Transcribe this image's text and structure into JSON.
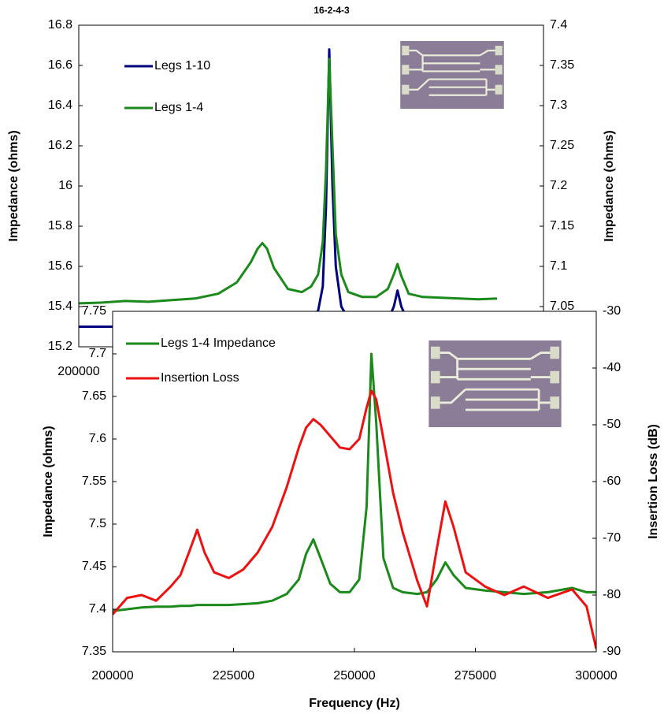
{
  "chart_data": [
    {
      "type": "line",
      "title": "16-2-4-3",
      "ylabel": "Impedance (ohms)",
      "y2label": "Impedance (ohms)",
      "x": [
        200000,
        205000,
        210000,
        215000,
        220000,
        225000,
        230000,
        234000,
        237000,
        238500,
        239500,
        240500,
        242000,
        245000,
        248000,
        250000,
        251500,
        252500,
        253200,
        253900,
        254600,
        255300,
        256500,
        258000,
        261000,
        264000,
        266500,
        267800,
        268600,
        269400,
        271000,
        274000,
        278000,
        282000,
        286000,
        290000
      ],
      "series": [
        {
          "name": "Legs 1-10",
          "color": "#000080",
          "values": [
            15.3,
            15.3,
            15.3,
            15.3,
            15.3,
            15.3,
            15.3,
            15.3,
            15.3,
            15.3,
            15.3,
            15.3,
            15.3,
            15.31,
            15.32,
            15.34,
            15.38,
            15.5,
            15.9,
            16.68,
            16.0,
            15.6,
            15.4,
            15.34,
            15.31,
            15.31,
            15.33,
            15.4,
            15.48,
            15.4,
            15.32,
            15.3,
            15.3,
            15.3,
            15.3,
            15.3
          ]
        },
        {
          "name": "Legs 1-4",
          "color": "#1a8a1a",
          "axis": "y2",
          "values": [
            7.054,
            7.055,
            7.057,
            7.056,
            7.058,
            7.06,
            7.066,
            7.08,
            7.105,
            7.122,
            7.129,
            7.122,
            7.098,
            7.072,
            7.068,
            7.075,
            7.09,
            7.13,
            7.22,
            7.358,
            7.25,
            7.14,
            7.09,
            7.068,
            7.062,
            7.062,
            7.072,
            7.09,
            7.103,
            7.088,
            7.066,
            7.062,
            7.061,
            7.06,
            7.059,
            7.06
          ]
        }
      ],
      "xlim": [
        200000,
        300000
      ],
      "xticks": [
        200000
      ],
      "ylim": [
        15.2,
        16.8
      ],
      "yticks": [
        15.2,
        15.4,
        15.6,
        15.8,
        16,
        16.2,
        16.4,
        16.6,
        16.8
      ],
      "y2lim": [
        7.0,
        7.4
      ],
      "y2ticks": [
        7.05,
        7.1,
        7.15,
        7.2,
        7.25,
        7.3,
        7.35,
        7.4
      ]
    },
    {
      "type": "line",
      "xlabel": "Frequency (Hz)",
      "ylabel": "Impedance (ohms)",
      "y2label": "Insertion Loss (dB)",
      "x": [
        200000,
        203000,
        206000,
        209000,
        212000,
        214000,
        216000,
        217500,
        219000,
        221000,
        224000,
        227000,
        230000,
        233000,
        236000,
        238500,
        240000,
        241500,
        243000,
        245000,
        247000,
        249000,
        251000,
        252500,
        253500,
        254500,
        256000,
        258000,
        260000,
        263000,
        265000,
        267000,
        268800,
        270500,
        273000,
        277000,
        281000,
        285000,
        290000,
        295000,
        298000,
        300000
      ],
      "series": [
        {
          "name": "Legs 1-4 Impedance",
          "color": "#1a8a1a",
          "values": [
            7.398,
            7.4,
            7.402,
            7.403,
            7.403,
            7.404,
            7.404,
            7.405,
            7.405,
            7.405,
            7.405,
            7.406,
            7.407,
            7.41,
            7.418,
            7.435,
            7.465,
            7.482,
            7.46,
            7.43,
            7.42,
            7.42,
            7.435,
            7.52,
            7.7,
            7.62,
            7.46,
            7.425,
            7.42,
            7.418,
            7.42,
            7.435,
            7.455,
            7.44,
            7.425,
            7.422,
            7.42,
            7.418,
            7.42,
            7.425,
            7.42,
            7.42
          ]
        },
        {
          "name": "Insertion Loss",
          "color": "#ee1111",
          "axis": "y2",
          "values": [
            -83.4,
            -80.5,
            -80.0,
            -81.0,
            -78.5,
            -76.5,
            -72.0,
            -68.5,
            -72.5,
            -76.0,
            -77.0,
            -75.5,
            -72.5,
            -68.0,
            -61.0,
            -54.0,
            -50.5,
            -49.0,
            -50.0,
            -52.0,
            -54.0,
            -54.3,
            -52.5,
            -47.0,
            -44.0,
            -45.5,
            -52.5,
            -62.0,
            -69.0,
            -77.5,
            -82.0,
            -72.0,
            -63.5,
            -68.0,
            -76.0,
            -78.5,
            -80.0,
            -78.5,
            -80.5,
            -79.0,
            -82.0,
            -89.5
          ]
        }
      ],
      "xlim": [
        200000,
        300000
      ],
      "xticks": [
        200000,
        225000,
        250000,
        275000,
        300000
      ],
      "ylim": [
        7.35,
        7.75
      ],
      "yticks": [
        7.35,
        7.4,
        7.45,
        7.5,
        7.55,
        7.6,
        7.65,
        7.7,
        7.75
      ],
      "y2lim": [
        -90,
        -30
      ],
      "y2ticks": [
        -90,
        -80,
        -70,
        -60,
        -50,
        -40,
        -30
      ]
    }
  ]
}
